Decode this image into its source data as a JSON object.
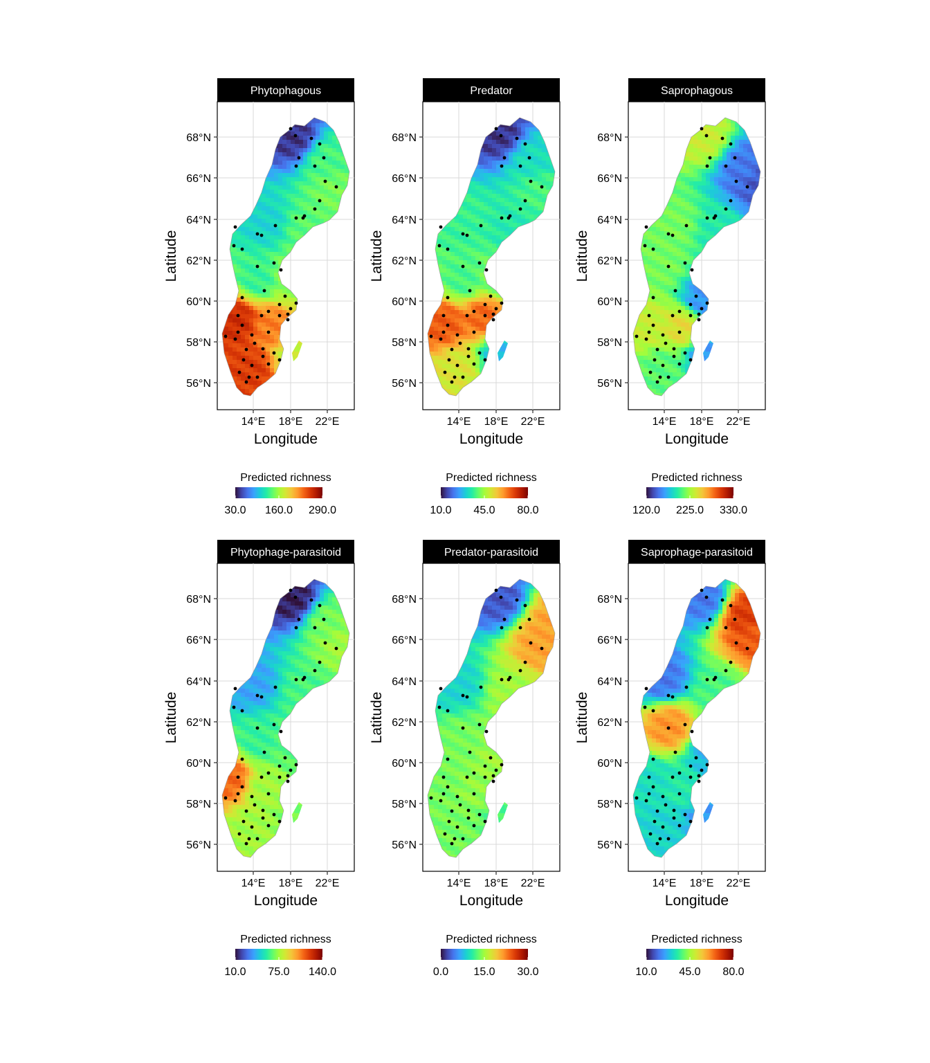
{
  "figure": {
    "x_axis_title": "Longitude",
    "y_axis_title": "Latitude",
    "x_ticks": [
      "14°E",
      "18°E",
      "22°E"
    ],
    "y_ticks": [
      "56°N",
      "58°N",
      "60°N",
      "62°N",
      "64°N",
      "66°N",
      "68°N"
    ],
    "legend_title": "Predicted richness",
    "colormap": [
      "#30123b",
      "#4145ab",
      "#4675ed",
      "#39a2fc",
      "#1bcfd4",
      "#24eca6",
      "#61fc6c",
      "#a4fc3b",
      "#d1e834",
      "#f3c63a",
      "#fe9b2d",
      "#f36315",
      "#d93806",
      "#b11901",
      "#7a0402"
    ],
    "point_color": "#000000"
  },
  "panels": [
    {
      "title": "Phytophagous",
      "legend_labels": [
        "30.0",
        "160.0",
        "290.0"
      ],
      "scale_min": 30,
      "scale_max": 290
    },
    {
      "title": "Predator",
      "legend_labels": [
        "10.0",
        "45.0",
        "80.0"
      ],
      "scale_min": 10,
      "scale_max": 80
    },
    {
      "title": "Saprophagous",
      "legend_labels": [
        "120.0",
        "225.0",
        "330.0"
      ],
      "scale_min": 120,
      "scale_max": 330
    },
    {
      "title": "Phytophage-parasitoid",
      "legend_labels": [
        "10.0",
        "75.0",
        "140.0"
      ],
      "scale_min": 10,
      "scale_max": 140
    },
    {
      "title": "Predator-parasitoid",
      "legend_labels": [
        "0.0",
        "15.0",
        "30.0"
      ],
      "scale_min": 0,
      "scale_max": 30
    },
    {
      "title": "Saprophage-parasitoid",
      "legend_labels": [
        "10.0",
        "45.0",
        "80.0"
      ],
      "scale_min": 10,
      "scale_max": 80
    }
  ]
}
